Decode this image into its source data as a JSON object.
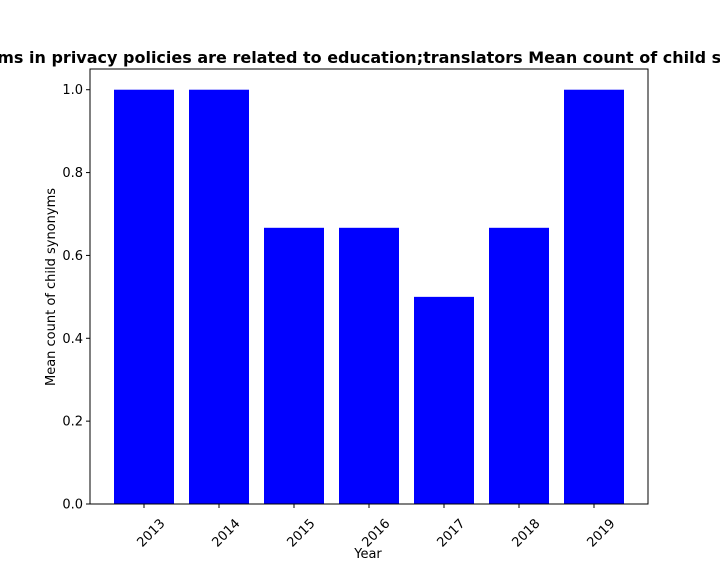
{
  "chart_data": {
    "type": "bar",
    "title": "Mean count of child synonyms in privacy policies are related to education;translators Mean count of child synonyms in privacy policies",
    "xlabel": "Year",
    "ylabel": "Mean count of child synonyms",
    "categories": [
      "2013",
      "2014",
      "2015",
      "2016",
      "2017",
      "2018",
      "2019"
    ],
    "values": [
      1.0,
      1.0,
      0.6667,
      0.6667,
      0.5,
      0.6667,
      1.0
    ],
    "ylim": [
      0,
      1.05
    ],
    "yticks": [
      0.0,
      0.2,
      0.4,
      0.6,
      0.8,
      1.0
    ],
    "ytick_labels": [
      "0.0",
      "0.2",
      "0.4",
      "0.6",
      "0.8",
      "1.0"
    ],
    "bar_color": "#0000ff",
    "grid": false,
    "legend": "none"
  }
}
